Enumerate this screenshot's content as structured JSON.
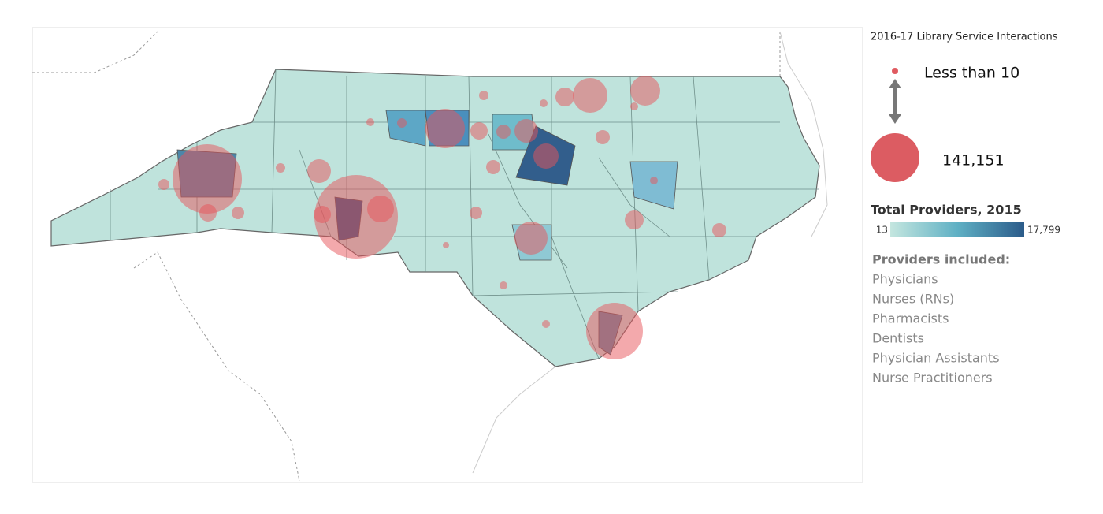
{
  "legend": {
    "size": {
      "title": "2016-17 Library Service Interactions",
      "min_label": "Less than 10",
      "max": {
        "value": 141151,
        "label": "141,151"
      }
    },
    "color": {
      "title": "Total Providers, 2015",
      "min": 13,
      "max": {
        "value": 17799,
        "label": "17,799"
      }
    },
    "providers": {
      "title": "Providers included:",
      "items": [
        "Physicians",
        "Nurses (RNs)",
        "Pharmacists",
        "Dentists",
        "Physician Assistants",
        "Nurse Practitioners"
      ]
    }
  }
}
